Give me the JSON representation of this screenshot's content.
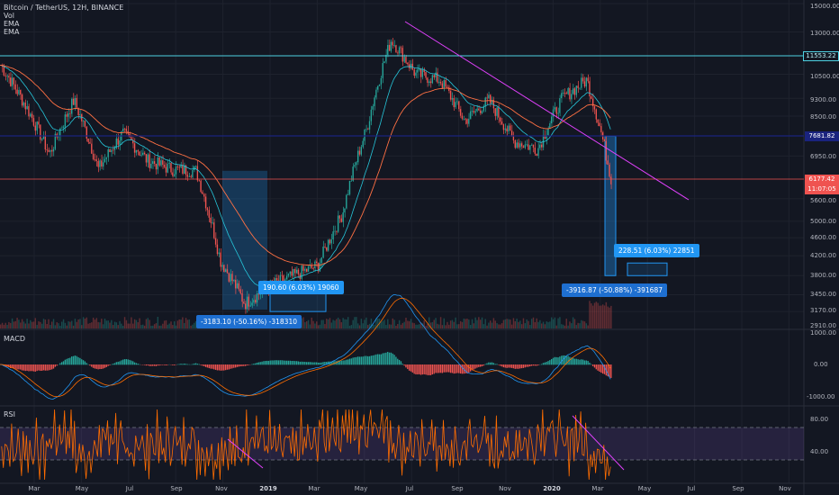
{
  "header": {
    "symbol": "Bitcoin / TetherUS, 12H, BINANCE",
    "indicators": [
      "Vol",
      "EMA",
      "EMA"
    ]
  },
  "panes": {
    "macd_label": "MACD",
    "rsi_label": "RSI"
  },
  "price_axis": {
    "ticks": [
      "15000.00",
      "13000.00",
      "11553.22",
      "10500.00",
      "9300.00",
      "8500.00",
      "7681.82",
      "6950.00",
      "6177.42",
      "11:07:05",
      "5600.00",
      "5000.00",
      "4600.00",
      "4200.00",
      "3800.00",
      "3450.00",
      "3170.00",
      "2910.00"
    ]
  },
  "macd_axis": {
    "ticks": [
      "1000.00",
      "0.00",
      "-1000.00"
    ]
  },
  "rsi_axis": {
    "ticks": [
      "80.00",
      "40.00"
    ]
  },
  "time_axis": {
    "labels": [
      "Mar",
      "May",
      "Jul",
      "Sep",
      "Nov",
      "2019",
      "Mar",
      "May",
      "Jul",
      "Sep",
      "Nov",
      "2020",
      "Mar",
      "May",
      "Jul",
      "Sep",
      "Nov"
    ]
  },
  "price_tags": {
    "resistance": "11553.22",
    "blue_line": "7681.82",
    "current": "6177.42",
    "countdown": "11:07:05"
  },
  "measurements": [
    {
      "text": "-3183.10 (-50.16%) -318310",
      "style": "down"
    },
    {
      "text": "190.60 (6.03%) 19060",
      "style": "up"
    },
    {
      "text": "-3916.87 (-50.88%) -391687",
      "style": "down"
    },
    {
      "text": "228.51 (6.03%) 22851",
      "style": "up"
    }
  ],
  "colors": {
    "background": "#131722",
    "up": "#26a69a",
    "down": "#ef5350",
    "ema_fast": "#2962ff",
    "ema_slow": "#ff6d00",
    "trendline": "#e040fb",
    "rsi": "#ff6d00",
    "rsi_band": "#7e57c2"
  },
  "chart_data": {
    "type": "candlestick",
    "title": "Bitcoin / TetherUS, 12H, BINANCE",
    "price_range": [
      2910,
      15000
    ],
    "key_levels": [
      11553.22,
      7681.82,
      6177.42
    ],
    "close_path": [
      {
        "x": "2018-02",
        "y": 11000
      },
      {
        "x": "2018-03",
        "y": 9000
      },
      {
        "x": "2018-04",
        "y": 7000
      },
      {
        "x": "2018-05",
        "y": 9200
      },
      {
        "x": "2018-06",
        "y": 6500
      },
      {
        "x": "2018-07",
        "y": 7800
      },
      {
        "x": "2018-08",
        "y": 6800
      },
      {
        "x": "2018-09",
        "y": 6500
      },
      {
        "x": "2018-10",
        "y": 6450
      },
      {
        "x": "2018-11",
        "y": 4100
      },
      {
        "x": "2018-12",
        "y": 3300
      },
      {
        "x": "2019-01",
        "y": 3600
      },
      {
        "x": "2019-02",
        "y": 3800
      },
      {
        "x": "2019-03",
        "y": 4000
      },
      {
        "x": "2019-04",
        "y": 5200
      },
      {
        "x": "2019-05",
        "y": 8000
      },
      {
        "x": "2019-06",
        "y": 12500
      },
      {
        "x": "2019-07",
        "y": 10500
      },
      {
        "x": "2019-08",
        "y": 10200
      },
      {
        "x": "2019-09",
        "y": 8300
      },
      {
        "x": "2019-10",
        "y": 9200
      },
      {
        "x": "2019-11",
        "y": 7500
      },
      {
        "x": "2019-12",
        "y": 7200
      },
      {
        "x": "2020-01",
        "y": 9300
      },
      {
        "x": "2020-02",
        "y": 10200
      },
      {
        "x": "2020-03",
        "y": 6177
      }
    ],
    "macd_range": [
      -1000,
      1000
    ],
    "rsi_levels": [
      30,
      70
    ]
  }
}
